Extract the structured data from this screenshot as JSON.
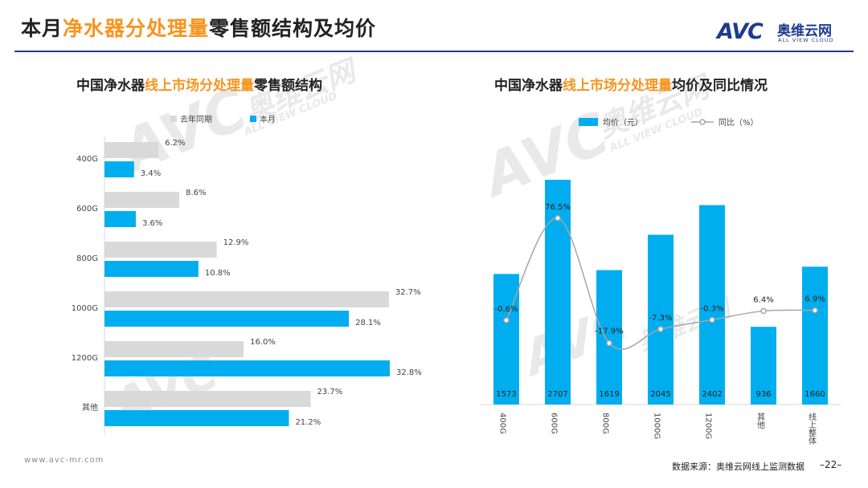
{
  "header": {
    "title_prefix": "本月",
    "title_highlight": "净水器分处理量",
    "title_suffix": "零售额结构及均价",
    "logo_avc": "AVC",
    "logo_cn": "奥维云网",
    "logo_en": "ALL VIEW CLOUD"
  },
  "watermarks": {
    "big": "AVC",
    "cn": "奥维云网",
    "en": "ALL VIEW CLOUD"
  },
  "colors": {
    "this_month": "#00aeef",
    "last_year": "#d9d9d9",
    "line": "#a6a6a6",
    "highlight": "#f7941d",
    "brand": "#1d3b8f"
  },
  "chart_data": [
    {
      "type": "bar",
      "orientation": "horizontal",
      "title_prefix": "中国净水器",
      "title_highlight": "线上市场分处理量",
      "title_suffix": "零售额结构",
      "categories": [
        "400G",
        "600G",
        "800G",
        "1000G",
        "1200G",
        "其他"
      ],
      "series": [
        {
          "name": "去年同期",
          "values": [
            6.2,
            8.6,
            12.9,
            32.7,
            16.0,
            23.7
          ],
          "labels": [
            "6.2%",
            "8.6%",
            "12.9%",
            "32.7%",
            "16.0%",
            "23.7%"
          ]
        },
        {
          "name": "本月",
          "values": [
            3.4,
            3.6,
            10.8,
            28.1,
            32.8,
            21.2
          ],
          "labels": [
            "3.4%",
            "3.6%",
            "10.8%",
            "28.1%",
            "32.8%",
            "21.2%"
          ]
        }
      ],
      "legend": "top"
    },
    {
      "type": "bar+line",
      "title_prefix": "中国净水器",
      "title_highlight": "线上市场分处理量",
      "title_suffix": "均价及同比情况",
      "categories": [
        "400G",
        "600G",
        "800G",
        "1000G",
        "1200G",
        "其他",
        "线上整体"
      ],
      "series": [
        {
          "name": "均价（元）",
          "type": "bar",
          "values": [
            1573,
            2707,
            1619,
            2045,
            2402,
            936,
            1660
          ],
          "labels": [
            "1573",
            "2707",
            "1619",
            "2045",
            "2402",
            "936",
            "1660"
          ]
        },
        {
          "name": "同比（%）",
          "type": "line",
          "values": [
            -0.6,
            76.5,
            -17.9,
            -7.3,
            -0.3,
            6.4,
            6.9
          ],
          "labels": [
            "-0.6%",
            "76.5%",
            "-17.9%",
            "-7.3%",
            "-0.3%",
            "6.4%",
            "6.9%"
          ]
        }
      ],
      "legend": "top"
    }
  ],
  "footer": {
    "url": "www.avc-mr.com",
    "source": "数据来源：奥维云网线上监测数据",
    "page": "–22–"
  }
}
